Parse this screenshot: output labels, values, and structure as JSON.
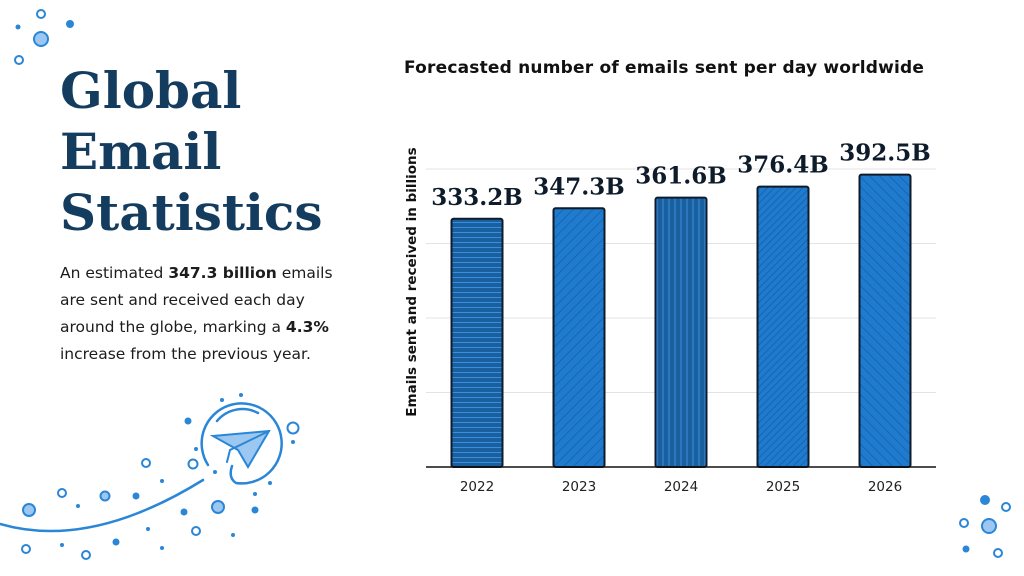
{
  "heading": {
    "lines": [
      "Global",
      "Email",
      "Statistics"
    ]
  },
  "description": {
    "part1": "An estimated ",
    "bold1": "347.3 billion",
    "part2": " emails are sent and received each day around the globe, marking a ",
    "bold2": "4.3%",
    "part3": " increase from the previous year."
  },
  "colors": {
    "title": "#133c5f",
    "bar_light": "#1f7bd0",
    "bar_dark": "#1a5f9e",
    "accent": "#2a86d6"
  },
  "decorations": {
    "icon": "paper-plane-icon"
  },
  "chart_data": {
    "type": "bar",
    "title": "Forecasted number of emails sent per day worldwide",
    "xlabel": "",
    "ylabel": "Emails sent and received in billions",
    "categories": [
      "2022",
      "2023",
      "2024",
      "2025",
      "2026"
    ],
    "values": [
      333.2,
      347.3,
      361.6,
      376.4,
      392.5
    ],
    "data_labels": [
      "333.2B",
      "347.3B",
      "361.6B",
      "376.4B",
      "392.5B"
    ],
    "patterns": [
      "horizontal-lines",
      "diagonal-back",
      "vertical-lines",
      "diagonal-back-dense",
      "diagonal-forward"
    ],
    "ylim": [
      0,
      400
    ],
    "grid": true,
    "legend": "none"
  }
}
